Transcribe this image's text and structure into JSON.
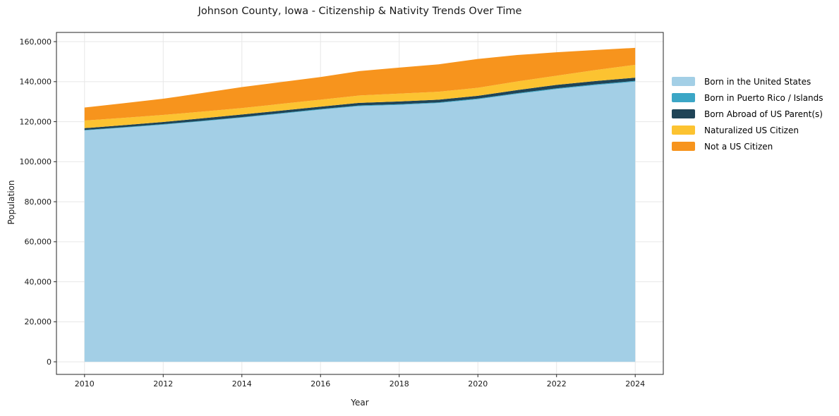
{
  "title": "Johnson County, Iowa - Citizenship & Nativity Trends Over Time",
  "chart_data": {
    "type": "area",
    "stacked": true,
    "title": "Johnson County, Iowa - Citizenship & Nativity Trends Over Time",
    "xlabel": "Year",
    "ylabel": "Population",
    "grid": true,
    "legend_position": "right-outside",
    "x": [
      2010,
      2011,
      2012,
      2013,
      2014,
      2015,
      2016,
      2017,
      2018,
      2019,
      2020,
      2021,
      2022,
      2023,
      2024
    ],
    "series": [
      {
        "name": "Born in the United States",
        "color": "#a3cfe6",
        "values": [
          115600,
          117000,
          118500,
          120200,
          122000,
          124000,
          126000,
          127800,
          128400,
          129300,
          131200,
          133900,
          136300,
          138300,
          140000
        ]
      },
      {
        "name": "Born in Puerto Rico / Islands",
        "color": "#3ba6c6",
        "values": [
          250,
          260,
          270,
          280,
          290,
          300,
          310,
          320,
          330,
          340,
          350,
          360,
          380,
          390,
          400
        ]
      },
      {
        "name": "Born Abroad of US Parent(s)",
        "color": "#1f4457",
        "values": [
          900,
          1000,
          1100,
          1200,
          1300,
          1250,
          1200,
          1300,
          1400,
          1350,
          1400,
          1550,
          1700,
          1650,
          1600
        ]
      },
      {
        "name": "Naturalized US Citizen",
        "color": "#fcc331",
        "values": [
          3800,
          3650,
          3500,
          3350,
          3200,
          3350,
          3500,
          3700,
          3900,
          3950,
          4000,
          4300,
          4600,
          5500,
          6400
        ]
      },
      {
        "name": "Not a US Citizen",
        "color": "#f7941d",
        "values": [
          6500,
          7300,
          8100,
          9300,
          10500,
          10900,
          11300,
          12200,
          13000,
          13700,
          14400,
          13200,
          11700,
          10000,
          8500
        ]
      }
    ],
    "xticks": [
      2010,
      2012,
      2014,
      2016,
      2018,
      2020,
      2022,
      2024
    ],
    "xtick_labels": [
      "2010",
      "2012",
      "2014",
      "2016",
      "2018",
      "2020",
      "2022",
      "2024"
    ],
    "yticks": [
      0,
      20000,
      40000,
      60000,
      80000,
      100000,
      120000,
      140000,
      160000
    ],
    "ytick_labels": [
      "0",
      "20,000",
      "40,000",
      "60,000",
      "80,000",
      "100,000",
      "120,000",
      "140,000",
      "160,000"
    ],
    "xlim": [
      2009.286,
      2024.714
    ],
    "ylim": [
      -6300,
      164600
    ]
  },
  "colors": {
    "grid": "#e7e7e7",
    "spine": "#262626",
    "tick": "#262626",
    "text": "#1a1a1a",
    "background": "#ffffff"
  }
}
